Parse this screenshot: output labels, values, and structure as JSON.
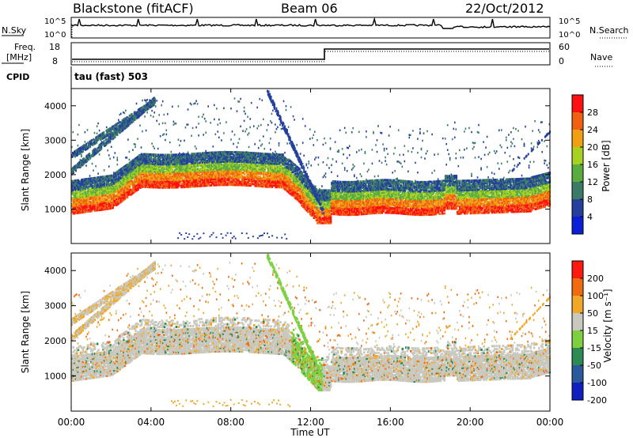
{
  "header": {
    "station": "Blackstone (fitACF)",
    "beam": "Beam 06",
    "date": "22/Oct/2012"
  },
  "status_panel": {
    "nsky_label": "N.Sky",
    "nsearch_label": "N.Search",
    "freq_label_1": "Freq.",
    "freq_label_2": "[MHz]",
    "nave_label": "Nave",
    "cpid_label": "CPID",
    "cpid_value": "tau (fast) 503",
    "noise_ticks": [
      "10^5",
      "10^0"
    ],
    "freq_ticks": [
      "18",
      "8"
    ],
    "nave_ticks": [
      "60",
      "0"
    ]
  },
  "chart_data": [
    {
      "type": "heatmap",
      "name": "power",
      "ylabel": "Slant Range [km]",
      "yticks": [
        1000,
        2000,
        3000,
        4000
      ],
      "ylim": [
        0,
        4500
      ],
      "colorbar_label": "Power [dB]",
      "colorbar_ticks": [
        "28",
        "24",
        "20",
        "16",
        "12",
        "8",
        "4"
      ],
      "colors": [
        "#0a1fd6",
        "#24409c",
        "#3c7a68",
        "#5aab40",
        "#a8d020",
        "#f0a010",
        "#f06010",
        "#ff1010"
      ]
    },
    {
      "type": "heatmap",
      "name": "velocity",
      "ylabel": "Slant Range [km]",
      "yticks": [
        1000,
        2000,
        3000,
        4000
      ],
      "ylim": [
        0,
        4500
      ],
      "colorbar_label": "Velocity [m s⁻¹]",
      "colorbar_ticks": [
        "200",
        "100",
        "50",
        "15",
        "-15",
        "-50",
        "-100",
        "-200"
      ],
      "colors": [
        "#1020c0",
        "#2b5a9c",
        "#2e8a55",
        "#7fd040",
        "#c8c8be",
        "#f0a828",
        "#f06a10",
        "#ff1a10"
      ]
    }
  ],
  "time_axis": {
    "label": "Time UT",
    "ticks": [
      "00:00",
      "04:00",
      "08:00",
      "12:00",
      "16:00",
      "20:00",
      "00:00"
    ]
  }
}
